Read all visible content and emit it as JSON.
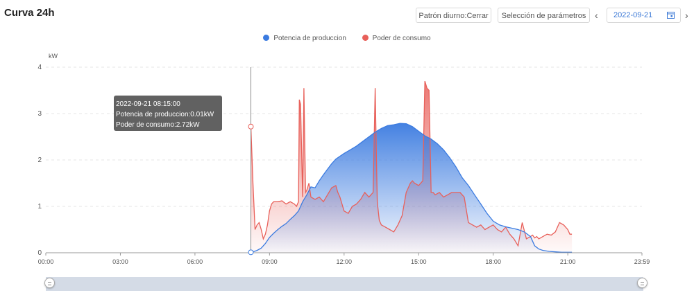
{
  "header": {
    "title": "Curva 24h",
    "mode_button": "Patrón diurno:Cerrar",
    "params_button": "Selección de parámetros",
    "date": "2022-09-21",
    "prev_icon": "chevron-left-icon",
    "next_icon": "chevron-right-icon",
    "calendar_icon": "calendar-icon"
  },
  "tooltip": {
    "time": "2022-09-21 08:15:00",
    "production": "Potencia de produccion:0.01kW",
    "consumption": "Poder de consumo:2.72kW"
  },
  "colors": {
    "production": "#3b7be0",
    "consumption": "#e8605a"
  },
  "chart_data": {
    "type": "area",
    "ylabel": "kW",
    "ylim": [
      0,
      4
    ],
    "yticks": [
      "0",
      "1",
      "2",
      "3",
      "4"
    ],
    "xlim": [
      0,
      1439
    ],
    "xticks": [
      {
        "label": "00:00",
        "min": 0
      },
      {
        "label": "03:00",
        "min": 180
      },
      {
        "label": "06:00",
        "min": 360
      },
      {
        "label": "09:00",
        "min": 540
      },
      {
        "label": "12:00",
        "min": 720
      },
      {
        "label": "15:00",
        "min": 900
      },
      {
        "label": "18:00",
        "min": 1080
      },
      {
        "label": "21:00",
        "min": 1260
      },
      {
        "label": "23:59",
        "min": 1439
      }
    ],
    "legend_position": "top-center",
    "grid": true,
    "series": [
      {
        "name": "Potencia de produccion",
        "x": [
          495,
          500,
          510,
          520,
          530,
          540,
          550,
          560,
          570,
          580,
          590,
          600,
          610,
          620,
          630,
          640,
          650,
          660,
          670,
          680,
          690,
          700,
          710,
          720,
          735,
          750,
          765,
          780,
          795,
          810,
          825,
          840,
          855,
          870,
          885,
          900,
          915,
          930,
          945,
          960,
          975,
          990,
          1005,
          1020,
          1035,
          1050,
          1065,
          1080,
          1095,
          1110,
          1125,
          1140,
          1155,
          1170,
          1180,
          1190,
          1200,
          1215,
          1230,
          1245,
          1260,
          1270
        ],
        "y": [
          0.01,
          0.02,
          0.05,
          0.1,
          0.2,
          0.33,
          0.42,
          0.5,
          0.57,
          0.63,
          0.72,
          0.8,
          0.9,
          1.1,
          1.25,
          1.42,
          1.4,
          1.55,
          1.68,
          1.8,
          1.92,
          2.02,
          2.08,
          2.14,
          2.22,
          2.3,
          2.4,
          2.5,
          2.6,
          2.68,
          2.74,
          2.76,
          2.79,
          2.78,
          2.72,
          2.62,
          2.52,
          2.45,
          2.35,
          2.22,
          2.05,
          1.85,
          1.62,
          1.45,
          1.25,
          1.05,
          0.85,
          0.68,
          0.6,
          0.56,
          0.53,
          0.5,
          0.45,
          0.35,
          0.15,
          0.08,
          0.05,
          0.03,
          0.02,
          0.01,
          0.01,
          0.01
        ]
      },
      {
        "name": "Poder de consumo",
        "x": [
          495,
          500,
          505,
          510,
          515,
          520,
          525,
          530,
          535,
          540,
          545,
          550,
          560,
          570,
          580,
          590,
          600,
          605,
          610,
          612,
          615,
          620,
          623,
          627,
          630,
          635,
          640,
          650,
          660,
          670,
          680,
          690,
          700,
          705,
          710,
          720,
          730,
          740,
          750,
          760,
          770,
          780,
          790,
          795,
          800,
          805,
          810,
          820,
          830,
          840,
          850,
          860,
          870,
          880,
          885,
          890,
          900,
          910,
          915,
          920,
          925,
          930,
          935,
          940,
          950,
          960,
          970,
          980,
          990,
          1000,
          1010,
          1020,
          1030,
          1040,
          1050,
          1060,
          1070,
          1080,
          1090,
          1100,
          1110,
          1120,
          1130,
          1140,
          1150,
          1160,
          1170,
          1175,
          1180,
          1185,
          1190,
          1200,
          1210,
          1220,
          1230,
          1240,
          1250,
          1260,
          1265,
          1270
        ],
        "y": [
          2.72,
          1.5,
          0.5,
          0.6,
          0.65,
          0.5,
          0.3,
          0.4,
          0.6,
          0.9,
          1.05,
          1.1,
          1.1,
          1.12,
          1.05,
          1.1,
          1.05,
          1.0,
          1.1,
          3.3,
          3.2,
          1.2,
          3.55,
          1.3,
          1.35,
          1.5,
          1.2,
          1.15,
          1.2,
          1.1,
          1.25,
          1.4,
          1.45,
          1.3,
          1.2,
          0.9,
          0.85,
          1.0,
          1.05,
          1.15,
          1.3,
          1.2,
          1.3,
          3.55,
          1.1,
          0.7,
          0.6,
          0.55,
          0.5,
          0.45,
          0.6,
          0.8,
          1.3,
          1.5,
          1.55,
          1.5,
          1.45,
          1.55,
          3.7,
          3.55,
          3.5,
          1.3,
          1.3,
          1.25,
          1.3,
          1.2,
          1.25,
          1.3,
          1.3,
          1.3,
          1.2,
          0.65,
          0.6,
          0.55,
          0.6,
          0.5,
          0.55,
          0.6,
          0.5,
          0.45,
          0.55,
          0.4,
          0.3,
          0.15,
          0.65,
          0.3,
          0.35,
          0.38,
          0.32,
          0.35,
          0.3,
          0.35,
          0.4,
          0.38,
          0.45,
          0.65,
          0.6,
          0.5,
          0.4,
          0.4
        ]
      }
    ]
  }
}
